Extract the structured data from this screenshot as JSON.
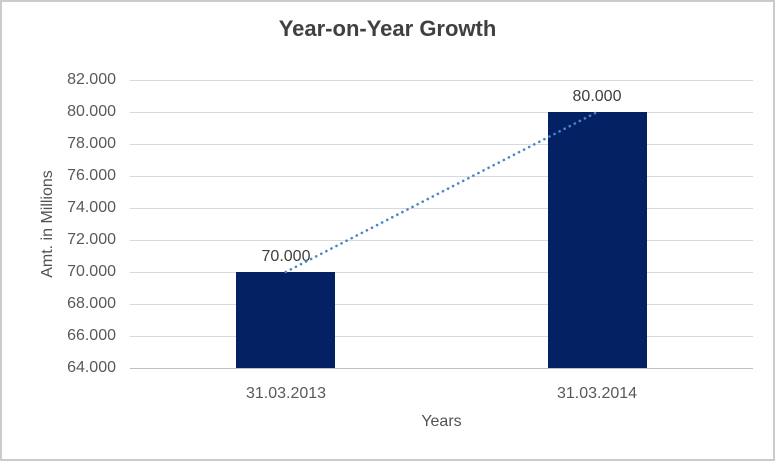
{
  "window": {
    "background_color": "#ffffff",
    "border_color": "#cbcbcb"
  },
  "chart_data": {
    "type": "bar",
    "title": "Year-on-Year Growth",
    "xlabel": "Years",
    "ylabel": "Amt. in Millions",
    "categories": [
      "31.03.2013",
      "31.03.2014"
    ],
    "values": [
      70000,
      80000
    ],
    "data_labels": [
      "70.000",
      "80.000"
    ],
    "ylim": [
      64000,
      82000
    ],
    "ytick_step": 2000,
    "yticks": [
      82000,
      80000,
      78000,
      76000,
      74000,
      72000,
      70000,
      68000,
      66000,
      64000
    ],
    "ytick_labels": [
      "82.000",
      "80.000",
      "78.000",
      "76.000",
      "74.000",
      "72.000",
      "70.000",
      "68.000",
      "66.000",
      "64.000"
    ],
    "grid": "horizontal",
    "legend": "none",
    "trendline": {
      "type": "linear",
      "style": "dotted",
      "connects": "bar tops from first to last category"
    },
    "colors": {
      "bar_fill": "#032163",
      "trendline": "#4a86c8",
      "gridline": "#d9d9d9",
      "axis_line": "#bfbfbf",
      "title_text": "#404040",
      "tick_text": "#595959",
      "axis_title_text": "#525252",
      "data_label_text": "#404040"
    }
  }
}
